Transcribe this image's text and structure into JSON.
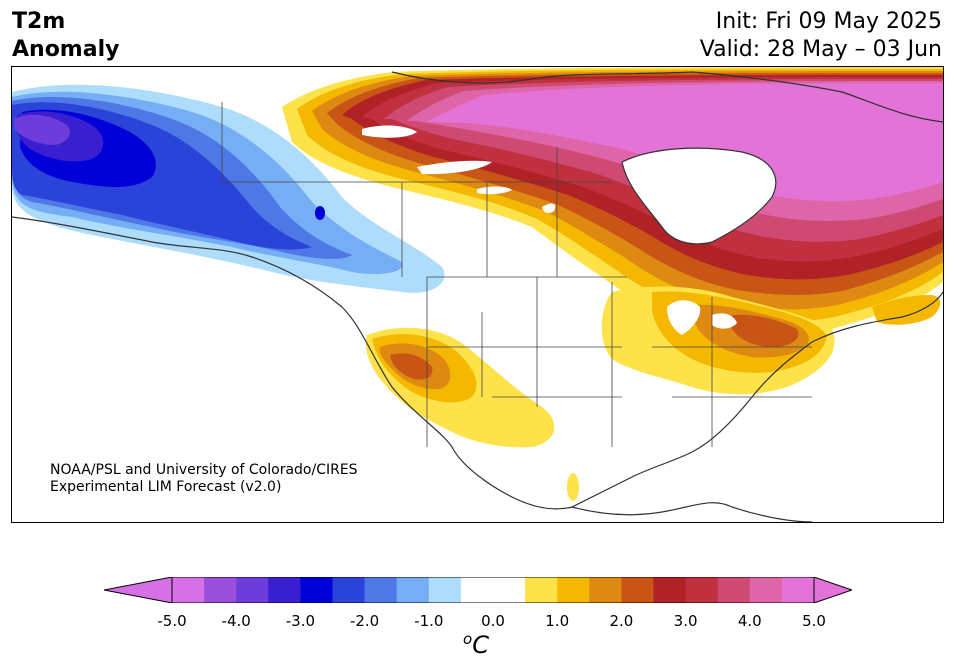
{
  "header": {
    "variable": "T2m",
    "subtitle": "Anomaly",
    "init": "Init: Fri 09 May 2025",
    "valid": "Valid: 28 May – 03 Jun"
  },
  "credit": {
    "line1": "NOAA/PSL and University of Colorado/CIRES",
    "line2": "Experimental LIM Forecast (v2.0)"
  },
  "colorbar": {
    "unit_sup": "o",
    "unit_main": "C",
    "ticks": [
      "-5.0",
      "-4.0",
      "-3.0",
      "-2.0",
      "-1.0",
      "0.0",
      "1.0",
      "2.0",
      "3.0",
      "4.0",
      "5.0"
    ],
    "colors": [
      "#d670e6",
      "#9a4fdc",
      "#6d3ddb",
      "#3a1fd1",
      "#0000d8",
      "#2a44da",
      "#4e78e6",
      "#76aef5",
      "#aedcfb",
      "#ffffff",
      "#ffffff",
      "#fde24a",
      "#f5b800",
      "#de8a12",
      "#c85416",
      "#b02226",
      "#c0303e",
      "#cf4a73",
      "#de65a8",
      "#e473d8"
    ],
    "under_color": "#d670e6",
    "over_color": "#e473d8"
  },
  "map": {
    "regions": {
      "west_canada_alaska": "cold anomaly",
      "north_canada": "warm anomaly",
      "southwest_us": "warm anomaly",
      "great_lakes_northeast": "warm anomaly"
    }
  }
}
